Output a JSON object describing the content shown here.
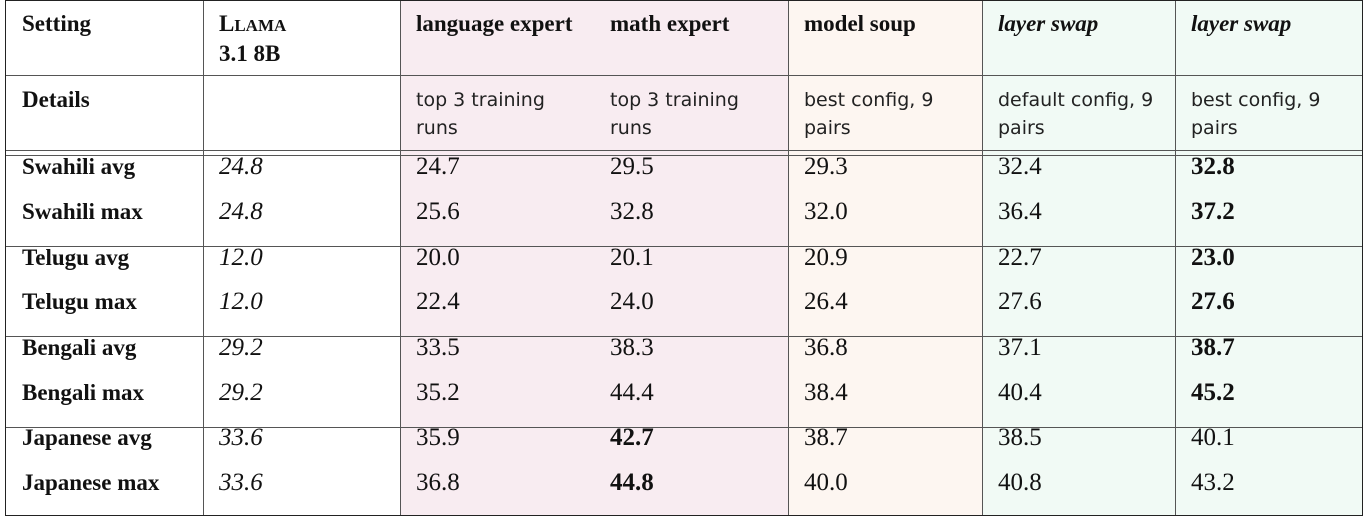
{
  "header": {
    "col0": "Setting",
    "col1_l": "L",
    "col1_lama": "LAMA",
    "col1_line2": "3.1 8B",
    "col2": "language expert",
    "col3": "math expert",
    "col4": "model soup",
    "col5": "layer swap",
    "col6": "layer swap"
  },
  "details": {
    "label": "Details",
    "col1": "",
    "col2": "top 3 training runs",
    "col3": "top 3 training runs",
    "col4": "best config, 9 pairs",
    "col5": "default config, 9 pairs",
    "col6": "best config, 9 pairs"
  },
  "rows": [
    {
      "label": "Swahili avg",
      "llama": "24.8",
      "lang": "24.7",
      "math": "29.5",
      "soup": "29.3",
      "swap_default": "32.4",
      "swap_best": "32.8"
    },
    {
      "label": "Swahili max",
      "llama": "24.8",
      "lang": "25.6",
      "math": "32.8",
      "soup": "32.0",
      "swap_default": "36.4",
      "swap_best": "37.2"
    },
    {
      "label": "Telugu avg",
      "llama": "12.0",
      "lang": "20.0",
      "math": "20.1",
      "soup": "20.9",
      "swap_default": "22.7",
      "swap_best": "23.0"
    },
    {
      "label": "Telugu max",
      "llama": "12.0",
      "lang": "22.4",
      "math": "24.0",
      "soup": "26.4",
      "swap_default": "27.6",
      "swap_best": "27.6"
    },
    {
      "label": "Bengali avg",
      "llama": "29.2",
      "lang": "33.5",
      "math": "38.3",
      "soup": "36.8",
      "swap_default": "37.1",
      "swap_best": "38.7"
    },
    {
      "label": "Bengali max",
      "llama": "29.2",
      "lang": "35.2",
      "math": "44.4",
      "soup": "38.4",
      "swap_default": "40.4",
      "swap_best": "45.2"
    },
    {
      "label": "Japanese avg",
      "llama": "33.6",
      "lang": "35.9",
      "math": "42.7",
      "soup": "38.7",
      "swap_default": "38.5",
      "swap_best": "40.1"
    },
    {
      "label": "Japanese max",
      "llama": "33.6",
      "lang": "36.8",
      "math": "44.8",
      "soup": "40.0",
      "swap_default": "40.8",
      "swap_best": "43.2"
    }
  ],
  "bold_cells": [
    [
      0,
      "swap_best"
    ],
    [
      1,
      "swap_best"
    ],
    [
      2,
      "swap_best"
    ],
    [
      3,
      "swap_best"
    ],
    [
      4,
      "swap_best"
    ],
    [
      5,
      "swap_best"
    ],
    [
      6,
      "math"
    ],
    [
      7,
      "math"
    ]
  ],
  "colors": {
    "expert_band": "#f8ecf1",
    "soup_band": "#fdf6f1",
    "swap_band": "#f1faf5",
    "border": "#222222"
  }
}
